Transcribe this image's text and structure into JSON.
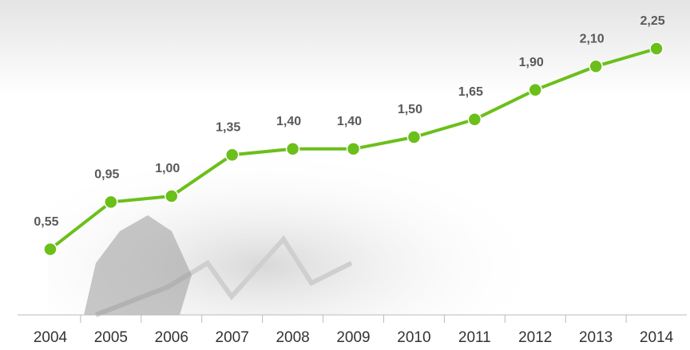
{
  "chart_data": {
    "type": "line",
    "categories": [
      "2004",
      "2005",
      "2006",
      "2007",
      "2008",
      "2009",
      "2010",
      "2011",
      "2012",
      "2013",
      "2014"
    ],
    "values": [
      0.55,
      0.95,
      1.0,
      1.35,
      1.4,
      1.4,
      1.5,
      1.65,
      1.9,
      2.1,
      2.25
    ],
    "value_labels": [
      "0,55",
      "0,95",
      "1,00",
      "1,35",
      "1,40",
      "1,40",
      "1,50",
      "1,65",
      "1,90",
      "2,10",
      "2,25"
    ],
    "color": "#6bbf1a"
  }
}
